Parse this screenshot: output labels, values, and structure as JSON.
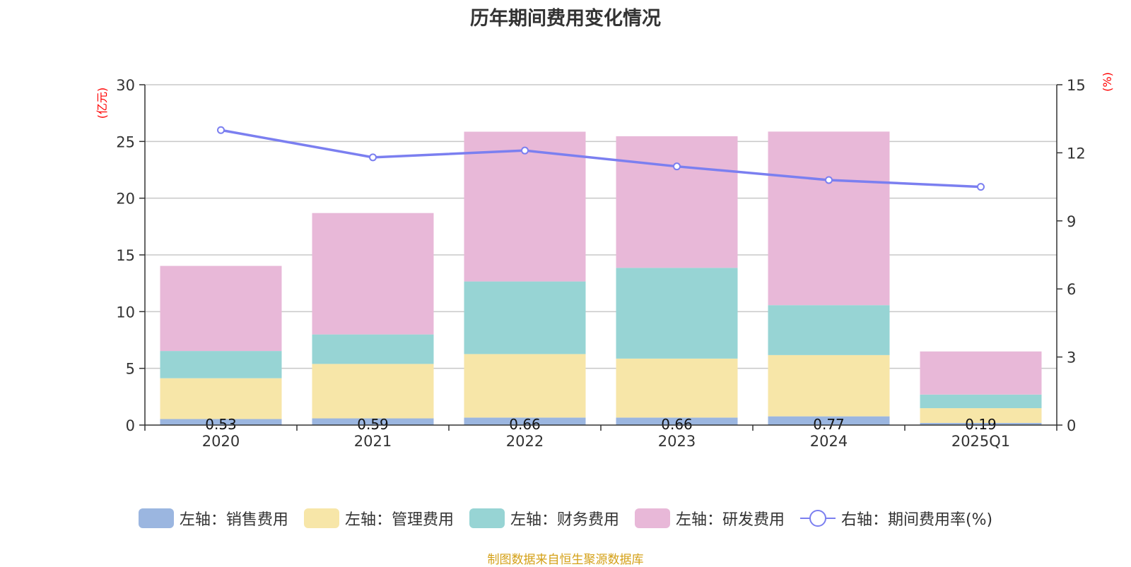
{
  "chart_data": {
    "type": "bar",
    "title": "历年期间费用变化情况",
    "categories": [
      "2020",
      "2021",
      "2022",
      "2023",
      "2024",
      "2025Q1"
    ],
    "left_axis": {
      "unit": "(亿元)",
      "ylim": [
        0,
        30
      ],
      "ticks": [
        0,
        5,
        10,
        15,
        20,
        25,
        30
      ]
    },
    "right_axis": {
      "unit": "(%)",
      "ylim": [
        0,
        15
      ],
      "ticks": [
        0,
        3,
        6,
        9,
        12,
        15
      ]
    },
    "series": [
      {
        "name": "左轴：销售费用",
        "color": "#9bb6e0",
        "values": [
          0.53,
          0.59,
          0.66,
          0.66,
          0.77,
          0.19
        ]
      },
      {
        "name": "左轴：管理费用",
        "color": "#f7e6a8",
        "values": [
          3.6,
          4.8,
          5.6,
          5.2,
          5.4,
          1.3
        ]
      },
      {
        "name": "左轴：财务费用",
        "color": "#97d4d4",
        "values": [
          2.4,
          2.6,
          6.4,
          8.0,
          4.4,
          1.2
        ]
      },
      {
        "name": "左轴：研发费用",
        "color": "#e8b8d8",
        "values": [
          7.5,
          10.7,
          13.2,
          11.6,
          15.3,
          3.8
        ]
      }
    ],
    "line": {
      "name": "右轴：期间费用率(%)",
      "color": "#7b7ff0",
      "values": [
        13.0,
        11.8,
        12.1,
        11.4,
        10.8,
        10.5
      ]
    },
    "data_labels": [
      "0.53",
      "0.59",
      "0.66",
      "0.66",
      "0.77",
      "0.19"
    ],
    "grid": true,
    "legend_position": "bottom"
  },
  "footer": {
    "source": "制图数据来自恒生聚源数据库",
    "source_color": "#d4a017"
  }
}
